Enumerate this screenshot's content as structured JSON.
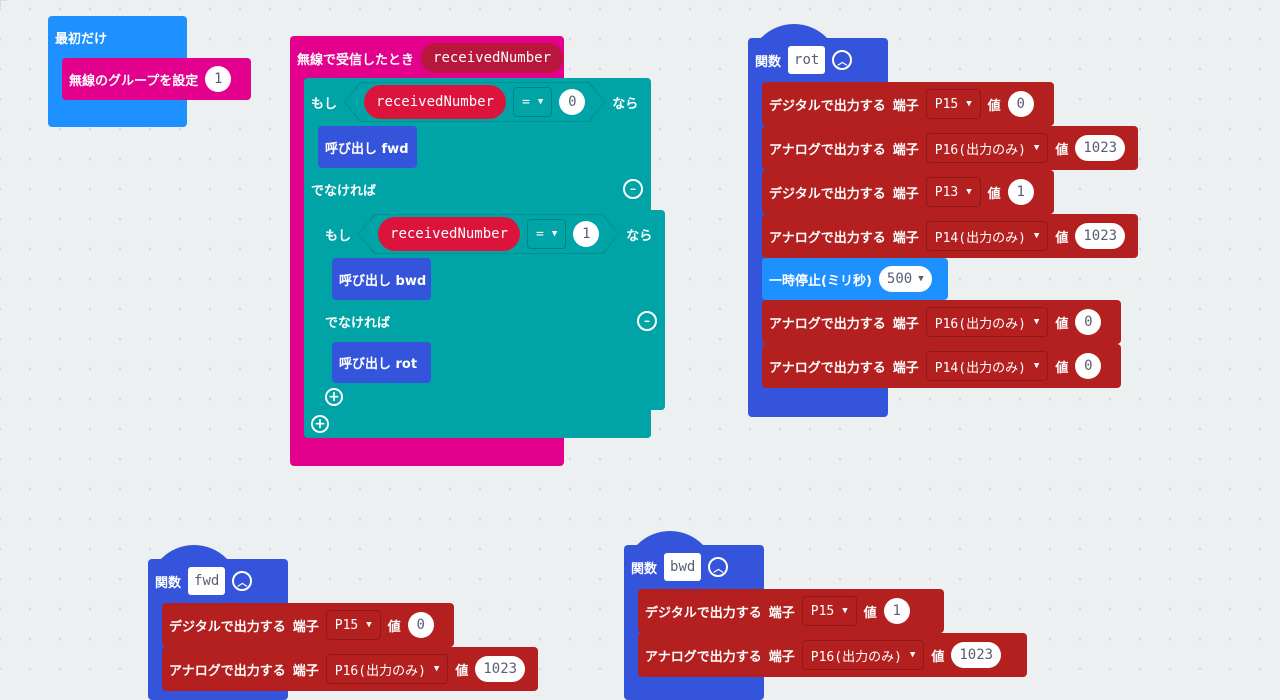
{
  "colors": {
    "on_start": "#1e90ff",
    "radio": "#e3008c",
    "logic": "#00a4a6",
    "function": "#3455db",
    "pins": "#b3201f",
    "basic": "#1e90ff",
    "variable": "#dc143c",
    "background": "#ecf0f1"
  },
  "on_start": {
    "label": "最初だけ",
    "set_group": {
      "label": "無線のグループを設定",
      "value": "1"
    }
  },
  "on_received": {
    "label": "無線で受信したとき",
    "param": "receivedNumber",
    "if_outer": {
      "if_label": "もし",
      "var": "receivedNumber",
      "op": "=",
      "value": "0",
      "then_label": "なら",
      "call_then": "呼び出し fwd",
      "else_label": "でなければ"
    },
    "if_inner": {
      "if_label": "もし",
      "var": "receivedNumber",
      "op": "=",
      "value": "1",
      "then_label": "なら",
      "call_then": "呼び出し bwd",
      "else_label": "でなければ",
      "call_else": "呼び出し rot"
    }
  },
  "functions": [
    {
      "label": "関数",
      "name": "rot",
      "statements": [
        {
          "label": "デジタルで出力する",
          "pin_label": "端子",
          "pin": "P15",
          "value_label": "値",
          "value": "0"
        },
        {
          "label": "アナログで出力する",
          "pin_label": "端子",
          "pin": "P16(出力のみ)",
          "value_label": "値",
          "value": "1023"
        },
        {
          "label": "デジタルで出力する",
          "pin_label": "端子",
          "pin": "P13",
          "value_label": "値",
          "value": "1"
        },
        {
          "label": "アナログで出力する",
          "pin_label": "端子",
          "pin": "P14(出力のみ)",
          "value_label": "値",
          "value": "1023"
        },
        {
          "label": "一時停止(ミリ秒)",
          "pause": "500"
        },
        {
          "label": "アナログで出力する",
          "pin_label": "端子",
          "pin": "P16(出力のみ)",
          "value_label": "値",
          "value": "0"
        },
        {
          "label": "アナログで出力する",
          "pin_label": "端子",
          "pin": "P14(出力のみ)",
          "value_label": "値",
          "value": "0"
        }
      ]
    },
    {
      "label": "関数",
      "name": "fwd",
      "statements": [
        {
          "label": "デジタルで出力する",
          "pin_label": "端子",
          "pin": "P15",
          "value_label": "値",
          "value": "0"
        },
        {
          "label": "アナログで出力する",
          "pin_label": "端子",
          "pin": "P16(出力のみ)",
          "value_label": "値",
          "value": "1023"
        }
      ]
    },
    {
      "label": "関数",
      "name": "bwd",
      "statements": [
        {
          "label": "デジタルで出力する",
          "pin_label": "端子",
          "pin": "P15",
          "value_label": "値",
          "value": "1"
        },
        {
          "label": "アナログで出力する",
          "pin_label": "端子",
          "pin": "P16(出力のみ)",
          "value_label": "値",
          "value": "1023"
        }
      ]
    }
  ]
}
